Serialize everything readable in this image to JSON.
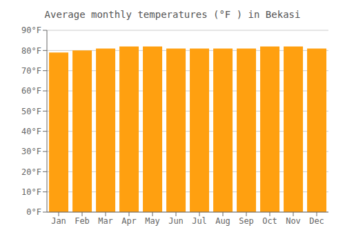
{
  "chart_data": {
    "type": "bar",
    "title": "Average monthly temperatures (°F ) in Bekasi",
    "categories": [
      "Jan",
      "Feb",
      "Mar",
      "Apr",
      "May",
      "Jun",
      "Jul",
      "Aug",
      "Sep",
      "Oct",
      "Nov",
      "Dec"
    ],
    "values": [
      79,
      80,
      81,
      82,
      82,
      81,
      81,
      81,
      81,
      82,
      82,
      81
    ],
    "color": "#FFA010",
    "ylim": [
      0,
      90
    ],
    "yticks": [
      {
        "value": 0,
        "label": "0°F"
      },
      {
        "value": 10,
        "label": "10°F"
      },
      {
        "value": 20,
        "label": "20°F"
      },
      {
        "value": 30,
        "label": "30°F"
      },
      {
        "value": 40,
        "label": "40°F"
      },
      {
        "value": 50,
        "label": "50°F"
      },
      {
        "value": 60,
        "label": "60°F"
      },
      {
        "value": 70,
        "label": "70°F"
      },
      {
        "value": 80,
        "label": "80°F"
      },
      {
        "value": 90,
        "label": "90°F"
      }
    ],
    "grid": true
  }
}
